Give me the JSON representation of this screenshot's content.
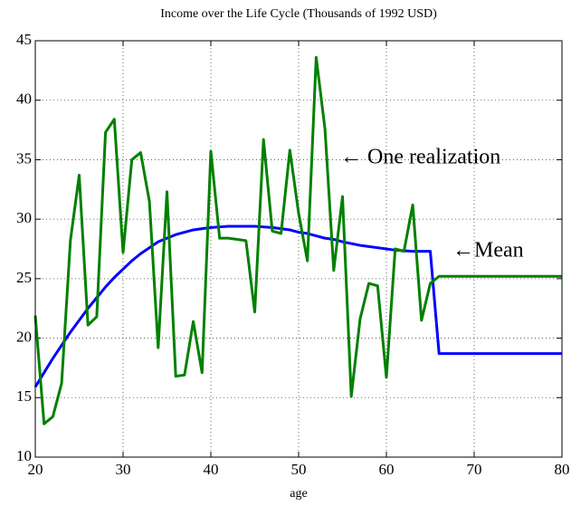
{
  "chart_data": {
    "type": "line",
    "title": "Income over the Life Cycle (Thousands of 1992 USD)",
    "x_label": "age",
    "x": [
      20,
      21,
      22,
      23,
      24,
      25,
      26,
      27,
      28,
      29,
      30,
      31,
      32,
      33,
      34,
      35,
      36,
      37,
      38,
      39,
      40,
      41,
      42,
      43,
      44,
      45,
      46,
      47,
      48,
      49,
      50,
      51,
      52,
      53,
      54,
      55,
      56,
      57,
      58,
      59,
      60,
      61,
      62,
      63,
      64,
      65,
      66,
      67,
      68,
      69,
      70,
      71,
      72,
      73,
      74,
      75,
      76,
      77,
      78,
      79,
      80
    ],
    "series": [
      {
        "name": "Mean",
        "color": "#0000ff",
        "values": [
          15.9,
          17.1,
          18.3,
          19.4,
          20.5,
          21.5,
          22.5,
          23.4,
          24.3,
          25.1,
          25.8,
          26.5,
          27.1,
          27.6,
          28.1,
          28.4,
          28.7,
          28.9,
          29.1,
          29.2,
          29.3,
          29.35,
          29.4,
          29.4,
          29.4,
          29.4,
          29.35,
          29.3,
          29.2,
          29.1,
          28.9,
          28.8,
          28.6,
          28.4,
          28.3,
          28.1,
          27.95,
          27.8,
          27.7,
          27.6,
          27.5,
          27.4,
          27.35,
          27.3,
          27.3,
          27.3,
          18.7,
          18.7,
          18.7,
          18.7,
          18.7,
          18.7,
          18.7,
          18.7,
          18.7,
          18.7,
          18.7,
          18.7,
          18.7,
          18.7,
          18.7
        ]
      },
      {
        "name": "One realization",
        "color": "#008000",
        "values": [
          21.9,
          12.8,
          13.4,
          16.2,
          28.2,
          33.7,
          21.1,
          21.8,
          37.3,
          38.4,
          27.2,
          35.0,
          35.6,
          31.5,
          19.2,
          32.3,
          16.8,
          16.9,
          21.4,
          17.1,
          35.7,
          28.4,
          28.4,
          28.3,
          28.2,
          22.2,
          36.7,
          29.0,
          28.8,
          35.8,
          30.5,
          26.5,
          43.6,
          37.6,
          25.7,
          31.9,
          15.1,
          21.6,
          24.6,
          24.4,
          16.7,
          27.5,
          27.3,
          31.2,
          21.5,
          24.6,
          25.2,
          25.2,
          25.2,
          25.2,
          25.2,
          25.2,
          25.2,
          25.2,
          25.2,
          25.2,
          25.2,
          25.2,
          25.2,
          25.2,
          25.2
        ]
      }
    ],
    "annotations": [
      "← One realization",
      "←Mean"
    ],
    "xlim": [
      20,
      80
    ],
    "xticks": [
      20,
      30,
      40,
      50,
      60,
      70,
      80
    ],
    "ylim": [
      10,
      45
    ],
    "yticks": [
      10,
      15,
      20,
      25,
      30,
      35,
      40,
      45
    ],
    "grid": true
  }
}
